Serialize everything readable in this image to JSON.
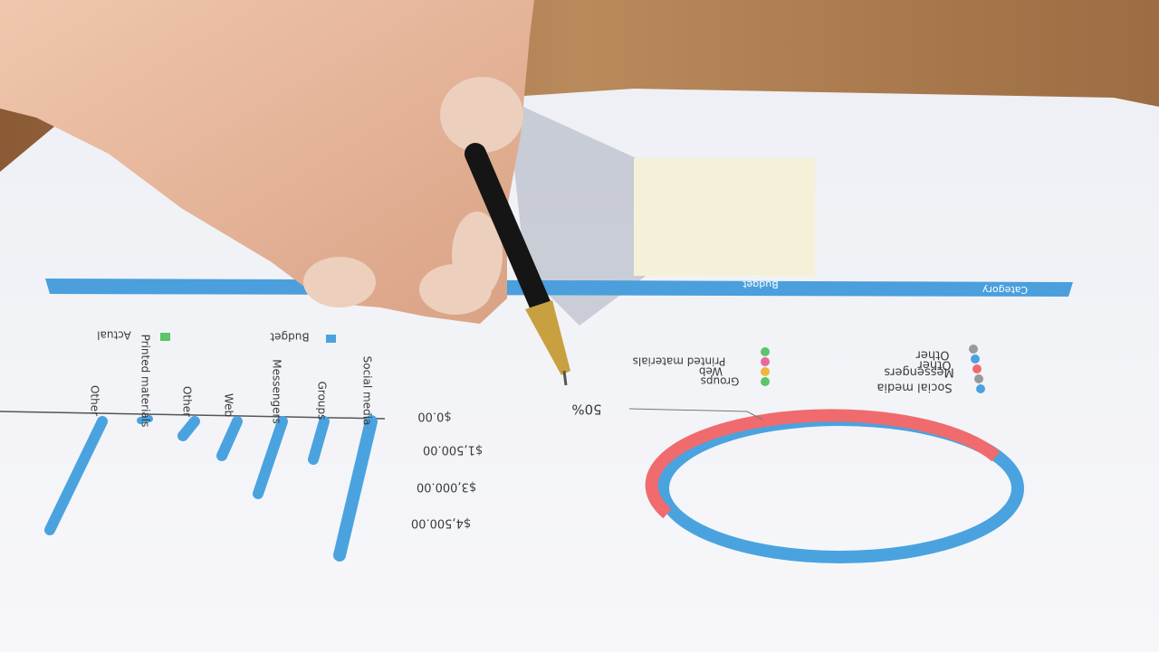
{
  "report": {
    "table_headers": [
      "Category",
      "Budget"
    ],
    "bar_legend": [
      "Budget",
      "Actual"
    ],
    "bar_categories": [
      "Social media",
      "Groups",
      "Messengers",
      "Web",
      "Other",
      "Printed materials",
      "Other"
    ],
    "bar_axis": [
      "$0.00",
      "$1,500.00",
      "$3,000.00",
      "$4,500.00"
    ],
    "donut_label": "50%",
    "donut_legend_right": [
      "Social media",
      "Messengers",
      "Other",
      "Other"
    ],
    "donut_legend_left": [
      "Groups",
      "Web",
      "Printed materials"
    ]
  }
}
